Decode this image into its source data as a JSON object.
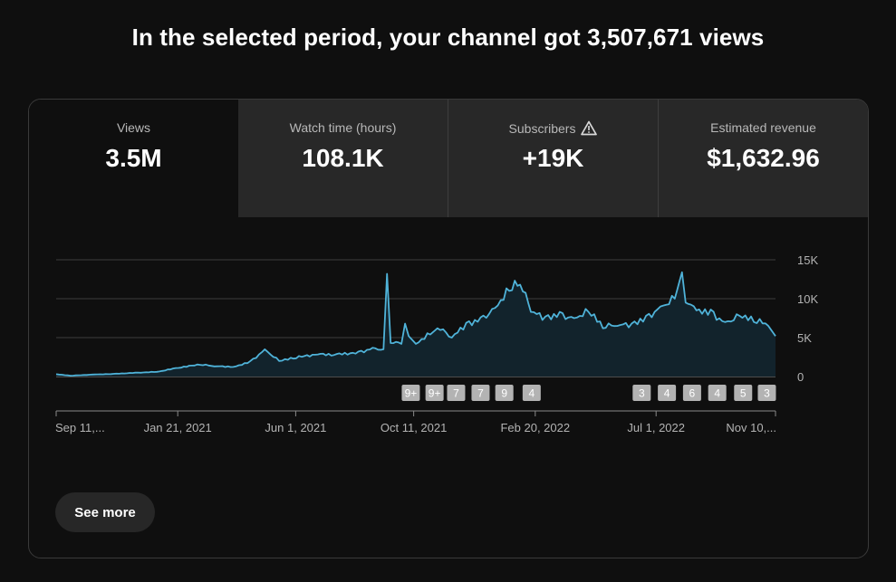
{
  "headline": "In the selected period, your channel got 3,507,671 views",
  "tabs": [
    {
      "label": "Views",
      "value": "3.5M",
      "active": true
    },
    {
      "label": "Watch time (hours)",
      "value": "108.1K"
    },
    {
      "label": "Subscribers",
      "value": "+19K",
      "icon": "warning-icon"
    },
    {
      "label": "Estimated revenue",
      "value": "$1,632.96"
    }
  ],
  "see_more_label": "See more",
  "colors": {
    "line": "#4fb3d9",
    "area": "#12232c",
    "badge": "#b3b3b3"
  },
  "chart_data": {
    "type": "area",
    "xlabel": "",
    "ylabel": "",
    "ylim": [
      0,
      15000
    ],
    "y_ticks": [
      {
        "label": "15K",
        "value": 15000
      },
      {
        "label": "10K",
        "value": 10000
      },
      {
        "label": "5K",
        "value": 5000
      },
      {
        "label": "0",
        "value": 0
      }
    ],
    "x_tick_labels": [
      "Sep 11,...",
      "Jan 21, 2021",
      "Jun 1, 2021",
      "Oct 11, 2021",
      "Feb 20, 2022",
      "Jul 1, 2022",
      "Nov 10,..."
    ],
    "x_tick_positions": [
      0,
      0.169,
      0.333,
      0.497,
      0.666,
      0.834,
      1
    ],
    "series": [
      {
        "values": [
          [
            0,
            300
          ],
          [
            0.02,
            100
          ],
          [
            0.05,
            250
          ],
          [
            0.08,
            350
          ],
          [
            0.11,
            500
          ],
          [
            0.14,
            600
          ],
          [
            0.17,
            1100
          ],
          [
            0.2,
            1500
          ],
          [
            0.22,
            1300
          ],
          [
            0.25,
            1300
          ],
          [
            0.27,
            2000
          ],
          [
            0.29,
            3500
          ],
          [
            0.31,
            2000
          ],
          [
            0.33,
            2300
          ],
          [
            0.36,
            2800
          ],
          [
            0.39,
            2900
          ],
          [
            0.42,
            3200
          ],
          [
            0.44,
            3700
          ],
          [
            0.455,
            3500
          ],
          [
            0.46,
            13200
          ],
          [
            0.465,
            4300
          ],
          [
            0.48,
            4200
          ],
          [
            0.485,
            6800
          ],
          [
            0.49,
            5200
          ],
          [
            0.5,
            4200
          ],
          [
            0.52,
            5400
          ],
          [
            0.53,
            6200
          ],
          [
            0.55,
            5000
          ],
          [
            0.57,
            6900
          ],
          [
            0.59,
            7600
          ],
          [
            0.61,
            8800
          ],
          [
            0.63,
            11000
          ],
          [
            0.645,
            11800
          ],
          [
            0.66,
            8300
          ],
          [
            0.68,
            7700
          ],
          [
            0.7,
            8300
          ],
          [
            0.72,
            7500
          ],
          [
            0.74,
            8300
          ],
          [
            0.76,
            6200
          ],
          [
            0.78,
            6500
          ],
          [
            0.8,
            6800
          ],
          [
            0.82,
            7800
          ],
          [
            0.84,
            9000
          ],
          [
            0.86,
            10000
          ],
          [
            0.87,
            13400
          ],
          [
            0.875,
            9500
          ],
          [
            0.89,
            8500
          ],
          [
            0.91,
            8600
          ],
          [
            0.93,
            7000
          ],
          [
            0.95,
            7800
          ],
          [
            0.97,
            7000
          ],
          [
            0.99,
            6500
          ],
          [
            1,
            5200
          ]
        ]
      }
    ],
    "annotation_badges": [
      {
        "label": "9+",
        "x": 0.493
      },
      {
        "label": "9+",
        "x": 0.526
      },
      {
        "label": "7",
        "x": 0.556
      },
      {
        "label": "7",
        "x": 0.59
      },
      {
        "label": "9",
        "x": 0.623
      },
      {
        "label": "4",
        "x": 0.661
      },
      {
        "label": "3",
        "x": 0.814
      },
      {
        "label": "4",
        "x": 0.849
      },
      {
        "label": "6",
        "x": 0.884
      },
      {
        "label": "4",
        "x": 0.919
      },
      {
        "label": "5",
        "x": 0.955
      },
      {
        "label": "3",
        "x": 0.988
      }
    ]
  }
}
